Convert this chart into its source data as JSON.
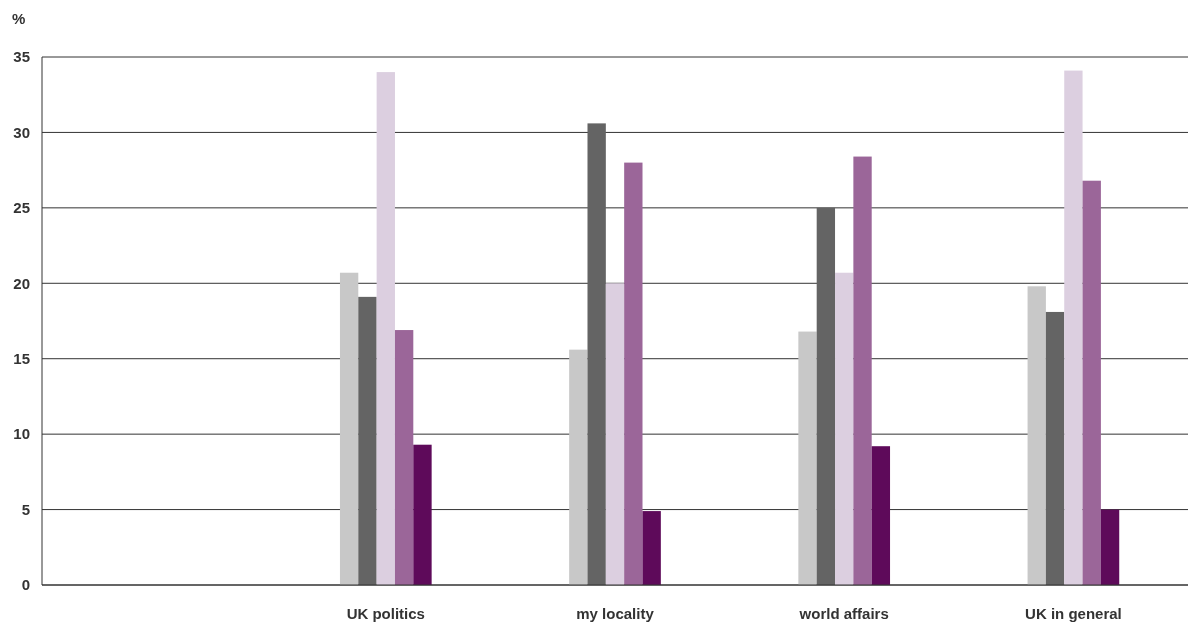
{
  "chart_data": {
    "type": "bar",
    "ylabel": "%",
    "categories": [
      null,
      "UK politics",
      "my locality",
      "world affairs",
      "UK in general"
    ],
    "series": [
      {
        "color": "#c8c8c8",
        "values": [
          null,
          20.7,
          15.6,
          16.8,
          19.8
        ]
      },
      {
        "color": "#646464",
        "values": [
          null,
          19.1,
          30.6,
          25.0,
          18.1
        ]
      },
      {
        "color": "#dccfe0",
        "values": [
          null,
          34.0,
          20.0,
          20.7,
          34.1
        ]
      },
      {
        "color": "#9b6699",
        "values": [
          null,
          16.9,
          28.0,
          28.4,
          26.8
        ]
      },
      {
        "color": "#5e0a5a",
        "values": [
          null,
          9.3,
          4.9,
          9.2,
          5.0
        ]
      }
    ],
    "ylim": [
      0,
      35
    ],
    "yticks": [
      0,
      5,
      10,
      15,
      20,
      25,
      30,
      35
    ],
    "grid": "y"
  }
}
